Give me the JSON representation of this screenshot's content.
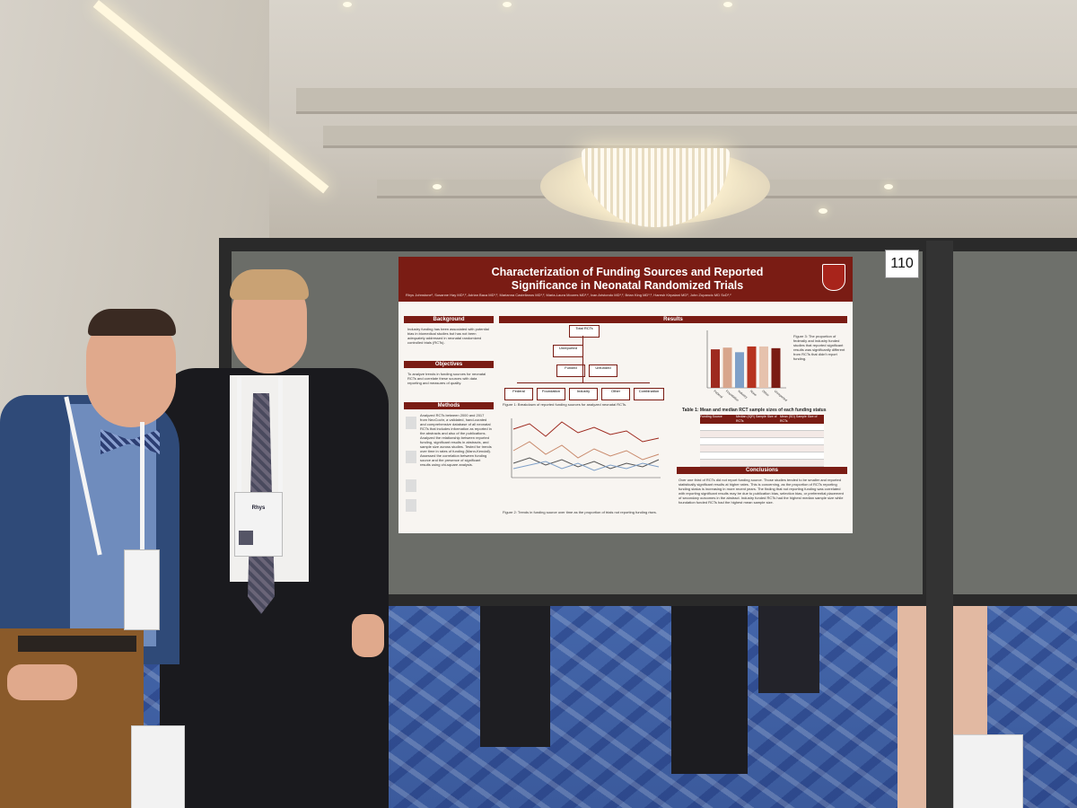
{
  "booth_number": "110",
  "poster": {
    "title_line1": "Characterization of Funding Sources and Reported",
    "title_line2": "Significance in Neonatal Randomized Trials",
    "authors": "Rhys Johnstone¹, Susanne Hay MD¹,², Adrian Baca MD¹,², Marianna Castellanos MD¹,², Maria-Laura Moores MD¹,², Ivan Aristondo MD¹,², Brian King MD¹,², Haresh Kirpalani MD³, John Zupancic MD ScD¹,²",
    "sections": {
      "background": "Background",
      "objectives": "Objectives",
      "methods": "Methods",
      "results": "Results",
      "conclusions": "Conclusions"
    },
    "background_text": "Industry funding has been associated with potential bias in biomedical studies but has not been adequately addressed in neonatal randomized controlled trials (RCTs).",
    "objectives_text": "To analyze trends in funding sources for neonatal RCTs and correlate these sources with data reporting and measures of quality.",
    "methods_text": "Analyzed RCTs between 2000 and 2017 from NeoCochr, a validated, hand-curated and comprehensive database of all neonatal RCTs that includes information as reported in the abstracts and also of the publications. Analyzed the relationship between reported funding, significant results in abstracts, and sample size across studies. Tested for trends over time in rates of funding (Mann-Kendall). Assessed the correlation between funding source and the presence of significant results using chi-square analysis.",
    "flowchart": {
      "total": "Total RCTs",
      "unreported": "Unreported",
      "funded": "Funded",
      "unfunded": "Unfunded",
      "leaves": [
        "Federal",
        "Foundation",
        "Industry",
        "Other",
        "Combination"
      ]
    },
    "figure1_caption": "Figure 1: Breakdown of reported funding sources for analyzed neonatal RCTs.",
    "figure2_caption": "Figure 2: Trends in funding source over time as the proportion of trials not reporting funding rises.",
    "figure3_caption": "Figure 3: The proportion of federally and industry funded studies that reported significant results was significantly different from RCTs that didn't report funding.",
    "table1_title": "Table 1: Mean and median RCT sample sizes of each funding status",
    "table1_headers": [
      "Funding Source",
      "Median (IQR) Sample Size of RCTs",
      "Mean (SD) Sample Size of RCTs"
    ],
    "conclusions_text": "Over one third of RCTs did not report funding source. Those studies tended to be smaller and reported statistically significant results at higher rates. This is concerning, as the proportion of RCTs reporting funding status is increasing in more recent years. The finding that not reporting funding was correlated with reporting significant results may be due to publication bias, selection bias, or preferential placement of secondary outcomes in the abstract. Industry funded RCTs had the highest median sample size while foundation funded RCTs had the highest mean sample size."
  },
  "badge": {
    "name": "Rhys"
  },
  "chart_data": {
    "type": "bar",
    "categories": [
      "Federal",
      "Foundation",
      "Industry",
      "None",
      "Other",
      "Unreported"
    ],
    "values": [
      67,
      70,
      62,
      72,
      72,
      69
    ],
    "colors": [
      "#9e2a1f",
      "#d8a58c",
      "#7fa0c8",
      "#b7331f",
      "#e6c2ad",
      "#7a1c14"
    ]
  },
  "colors": {
    "poster_maroon": "#7a1c14",
    "board_gray": "#6b6d68",
    "carpet_blue": "#3b5a9c"
  }
}
